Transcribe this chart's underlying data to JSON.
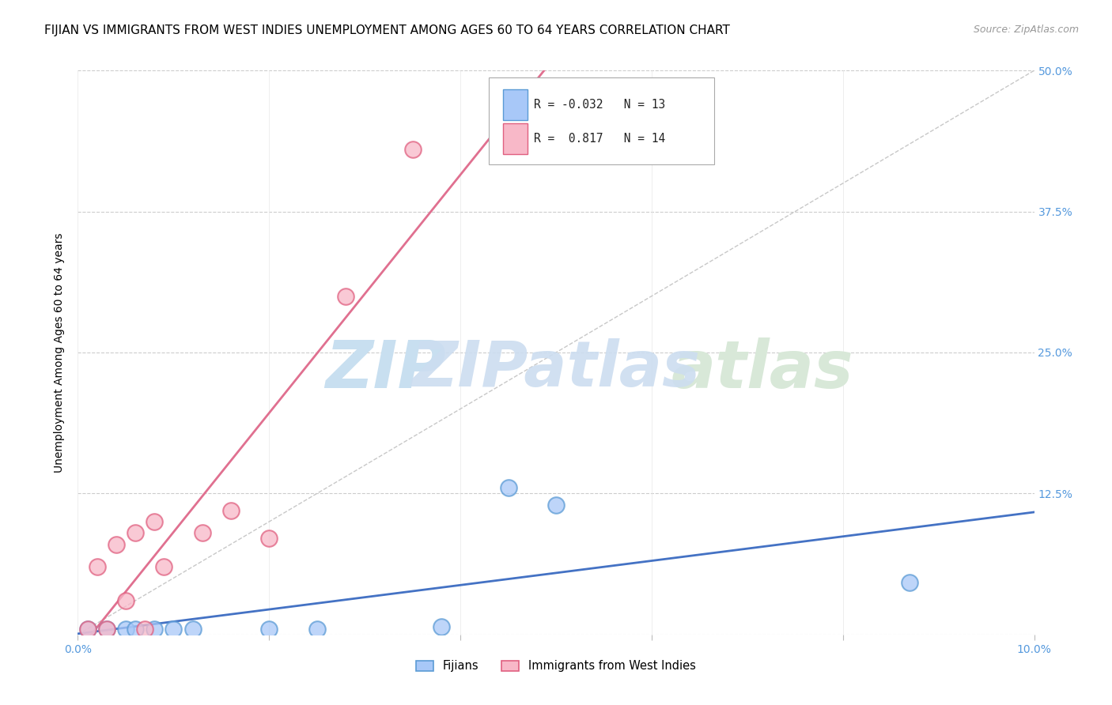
{
  "title": "FIJIAN VS IMMIGRANTS FROM WEST INDIES UNEMPLOYMENT AMONG AGES 60 TO 64 YEARS CORRELATION CHART",
  "source": "Source: ZipAtlas.com",
  "ylabel": "Unemployment Among Ages 60 to 64 years",
  "xlim": [
    0.0,
    0.1
  ],
  "ylim": [
    0.0,
    0.5
  ],
  "xtick_vals": [
    0.0,
    0.02,
    0.04,
    0.06,
    0.08,
    0.1
  ],
  "ytick_vals": [
    0.0,
    0.125,
    0.25,
    0.375,
    0.5
  ],
  "ytick_labels": [
    "",
    "12.5%",
    "25.0%",
    "37.5%",
    "50.0%"
  ],
  "fijian_x": [
    0.001,
    0.003,
    0.005,
    0.006,
    0.008,
    0.01,
    0.012,
    0.02,
    0.025,
    0.038,
    0.045,
    0.05,
    0.087
  ],
  "fijian_y": [
    0.005,
    0.005,
    0.005,
    0.005,
    0.005,
    0.005,
    0.005,
    0.005,
    0.005,
    0.007,
    0.13,
    0.115,
    0.046
  ],
  "west_indies_x": [
    0.001,
    0.002,
    0.003,
    0.004,
    0.005,
    0.006,
    0.007,
    0.008,
    0.009,
    0.013,
    0.016,
    0.02,
    0.028,
    0.035
  ],
  "west_indies_y": [
    0.005,
    0.06,
    0.005,
    0.08,
    0.03,
    0.09,
    0.005,
    0.1,
    0.06,
    0.09,
    0.11,
    0.085,
    0.3,
    0.43
  ],
  "fijian_color": "#a8c8f8",
  "fijian_edge_color": "#5b9bd5",
  "west_indies_color": "#f8b8c8",
  "west_indies_edge_color": "#e06080",
  "fijian_R": -0.032,
  "fijian_N": 13,
  "west_indies_R": 0.817,
  "west_indies_N": 14,
  "regression_line_fijian_color": "#4472c4",
  "regression_line_wi_color": "#e07090",
  "diagonal_line_color": "#c8c8c8",
  "watermark_zip": "ZIP",
  "watermark_atlas": "atlas",
  "watermark_color_zip": "#c8dff0",
  "watermark_color_atlas": "#d8e8d8",
  "title_fontsize": 11,
  "axis_label_fontsize": 10,
  "tick_fontsize": 10,
  "source_fontsize": 9
}
